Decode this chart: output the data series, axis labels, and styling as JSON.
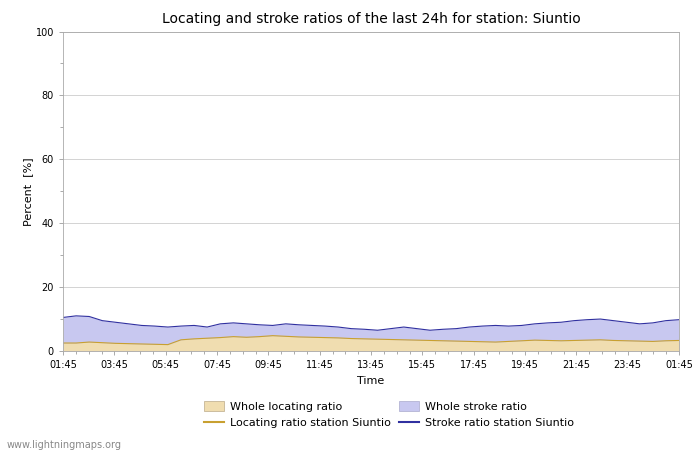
{
  "title": "Locating and stroke ratios of the last 24h for station: Siuntio",
  "xlabel": "Time",
  "ylabel": "Percent  [%]",
  "xlim_labels": [
    "01:45",
    "03:45",
    "05:45",
    "07:45",
    "09:45",
    "11:45",
    "13:45",
    "15:45",
    "17:45",
    "19:45",
    "21:45",
    "23:45",
    "01:45"
  ],
  "ylim": [
    0,
    100
  ],
  "yticks": [
    0,
    20,
    40,
    60,
    80,
    100
  ],
  "background_color": "#ffffff",
  "plot_bg_color": "#ffffff",
  "watermark": "www.lightningmaps.org",
  "whole_locating_color": "#f0ddb0",
  "whole_stroke_color": "#c8c8f0",
  "locating_line_color": "#c8a030",
  "stroke_line_color": "#3030a0",
  "whole_locating_ratio": [
    2.5,
    2.5,
    2.8,
    2.6,
    2.4,
    2.3,
    2.2,
    2.1,
    2.0,
    3.5,
    3.8,
    4.0,
    4.2,
    4.5,
    4.3,
    4.5,
    4.8,
    4.6,
    4.4,
    4.3,
    4.2,
    4.1,
    3.9,
    3.8,
    3.7,
    3.6,
    3.5,
    3.4,
    3.3,
    3.2,
    3.1,
    3.0,
    2.9,
    2.8,
    3.0,
    3.2,
    3.4,
    3.3,
    3.2,
    3.3,
    3.4,
    3.5,
    3.3,
    3.2,
    3.1,
    3.0,
    3.2,
    3.3
  ],
  "whole_stroke_ratio": [
    10.5,
    11.0,
    10.8,
    9.5,
    9.0,
    8.5,
    8.0,
    7.8,
    7.5,
    7.8,
    8.0,
    7.5,
    8.5,
    8.8,
    8.5,
    8.2,
    8.0,
    8.5,
    8.2,
    8.0,
    7.8,
    7.5,
    7.0,
    6.8,
    6.5,
    7.0,
    7.5,
    7.0,
    6.5,
    6.8,
    7.0,
    7.5,
    7.8,
    8.0,
    7.8,
    8.0,
    8.5,
    8.8,
    9.0,
    9.5,
    9.8,
    10.0,
    9.5,
    9.0,
    8.5,
    8.8,
    9.5,
    9.8
  ],
  "locating_station_ratio": [
    2.5,
    2.5,
    2.8,
    2.6,
    2.4,
    2.3,
    2.2,
    2.1,
    2.0,
    3.5,
    3.8,
    4.0,
    4.2,
    4.5,
    4.3,
    4.5,
    4.8,
    4.6,
    4.4,
    4.3,
    4.2,
    4.1,
    3.9,
    3.8,
    3.7,
    3.6,
    3.5,
    3.4,
    3.3,
    3.2,
    3.1,
    3.0,
    2.9,
    2.8,
    3.0,
    3.2,
    3.4,
    3.3,
    3.2,
    3.3,
    3.4,
    3.5,
    3.3,
    3.2,
    3.1,
    3.0,
    3.2,
    3.3
  ],
  "stroke_station_ratio": [
    10.5,
    11.0,
    10.8,
    9.5,
    9.0,
    8.5,
    8.0,
    7.8,
    7.5,
    7.8,
    8.0,
    7.5,
    8.5,
    8.8,
    8.5,
    8.2,
    8.0,
    8.5,
    8.2,
    8.0,
    7.8,
    7.5,
    7.0,
    6.8,
    6.5,
    7.0,
    7.5,
    7.0,
    6.5,
    6.8,
    7.0,
    7.5,
    7.8,
    8.0,
    7.8,
    8.0,
    8.5,
    8.8,
    9.0,
    9.5,
    9.8,
    10.0,
    9.5,
    9.0,
    8.5,
    8.8,
    9.5,
    9.8
  ],
  "title_fontsize": 10,
  "axis_fontsize": 8,
  "tick_fontsize": 7,
  "legend_fontsize": 8,
  "num_minor_ticks_per_major": 4
}
